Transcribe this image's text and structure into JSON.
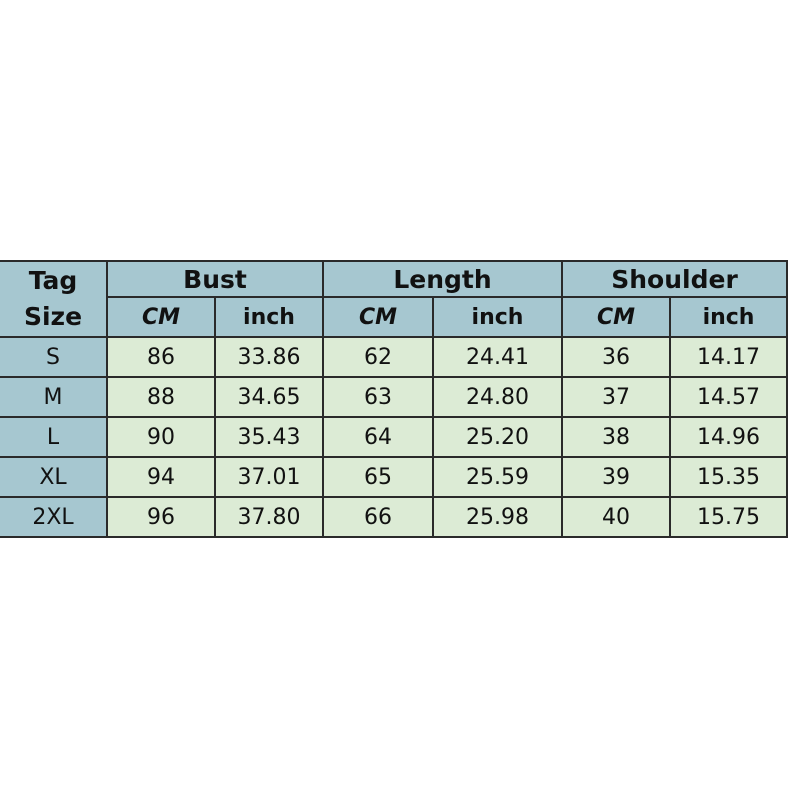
{
  "table": {
    "tag_header": [
      "Tag",
      "Size"
    ],
    "groups": [
      "Bust",
      "Length",
      "Shoulder"
    ],
    "units": [
      "CM",
      "inch"
    ],
    "rows": [
      [
        "S",
        "86",
        "33.86",
        "62",
        "24.41",
        "36",
        "14.17"
      ],
      [
        "M",
        "88",
        "34.65",
        "63",
        "24.80",
        "37",
        "14.57"
      ],
      [
        "L",
        "90",
        "35.43",
        "64",
        "25.20",
        "38",
        "14.96"
      ],
      [
        "XL",
        "94",
        "37.01",
        "65",
        "25.59",
        "39",
        "15.35"
      ],
      [
        "2XL",
        "96",
        "37.80",
        "66",
        "25.98",
        "40",
        "15.75"
      ]
    ]
  },
  "colors": {
    "header": "#a6c7d0",
    "cell": "#dcebd5",
    "border": "#2a2a2a"
  }
}
